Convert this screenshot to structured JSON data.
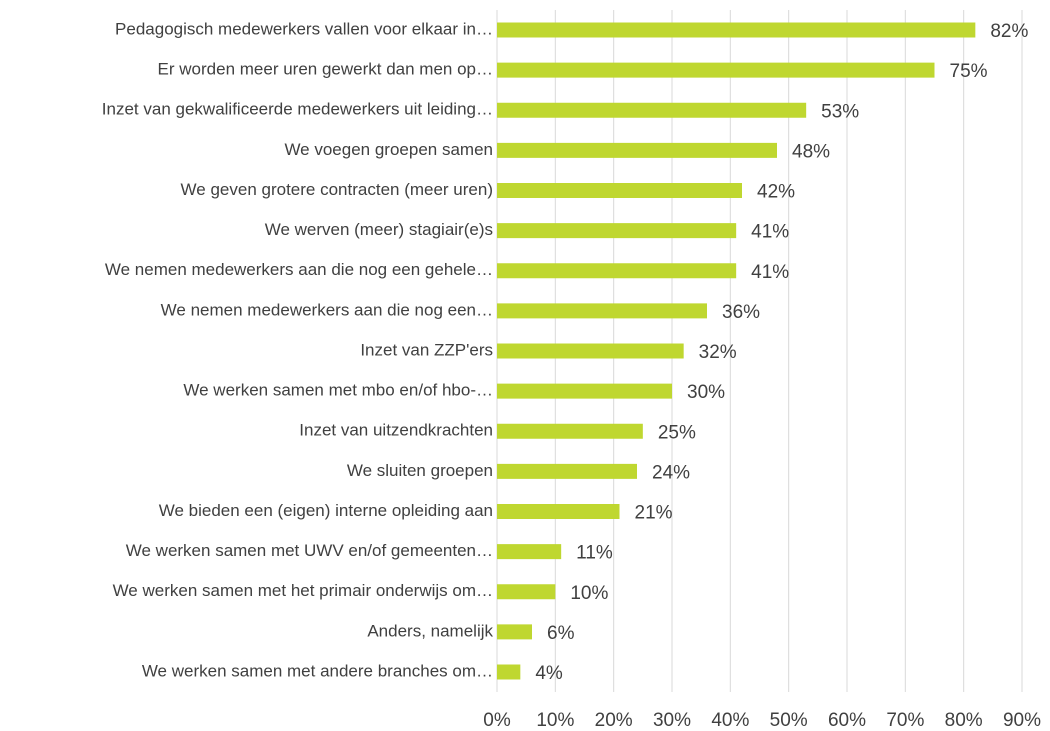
{
  "chart_data": {
    "type": "barh",
    "categories": [
      "Pedagogisch medewerkers vallen voor elkaar in…",
      "Er worden meer uren gewerkt dan men op…",
      "Inzet van gekwalificeerde medewerkers uit leiding…",
      "We voegen groepen samen",
      "We geven grotere contracten (meer uren)",
      "We werven (meer) stagiair(e)s",
      "We nemen medewerkers aan die nog een gehele…",
      "We nemen medewerkers aan die nog een…",
      "Inzet van ZZP'ers",
      "We werken samen met mbo en/of hbo-…",
      "Inzet van uitzendkrachten",
      "We sluiten groepen",
      "We bieden een (eigen) interne opleiding aan",
      "We werken samen met UWV en/of gemeenten…",
      "We werken samen met het primair onderwijs om…",
      "Anders, namelijk",
      "We werken samen met andere branches om…"
    ],
    "values": [
      82,
      75,
      53,
      48,
      42,
      41,
      41,
      36,
      32,
      30,
      25,
      24,
      21,
      11,
      10,
      6,
      4
    ],
    "value_labels": [
      "82%",
      "75%",
      "53%",
      "48%",
      "42%",
      "41%",
      "41%",
      "36%",
      "32%",
      "30%",
      "25%",
      "24%",
      "21%",
      "11%",
      "10%",
      "6%",
      "4%"
    ],
    "color": "#bfd730",
    "xlim": [
      0,
      90
    ],
    "xticks": [
      {
        "value": 0,
        "label": "0%"
      },
      {
        "value": 10,
        "label": "10%"
      },
      {
        "value": 20,
        "label": "20%"
      },
      {
        "value": 30,
        "label": "30%"
      },
      {
        "value": 40,
        "label": "40%"
      },
      {
        "value": 50,
        "label": "50%"
      },
      {
        "value": 60,
        "label": "60%"
      },
      {
        "value": 70,
        "label": "70%"
      },
      {
        "value": 80,
        "label": "80%"
      },
      {
        "value": 90,
        "label": "90%"
      }
    ],
    "grid": true
  }
}
